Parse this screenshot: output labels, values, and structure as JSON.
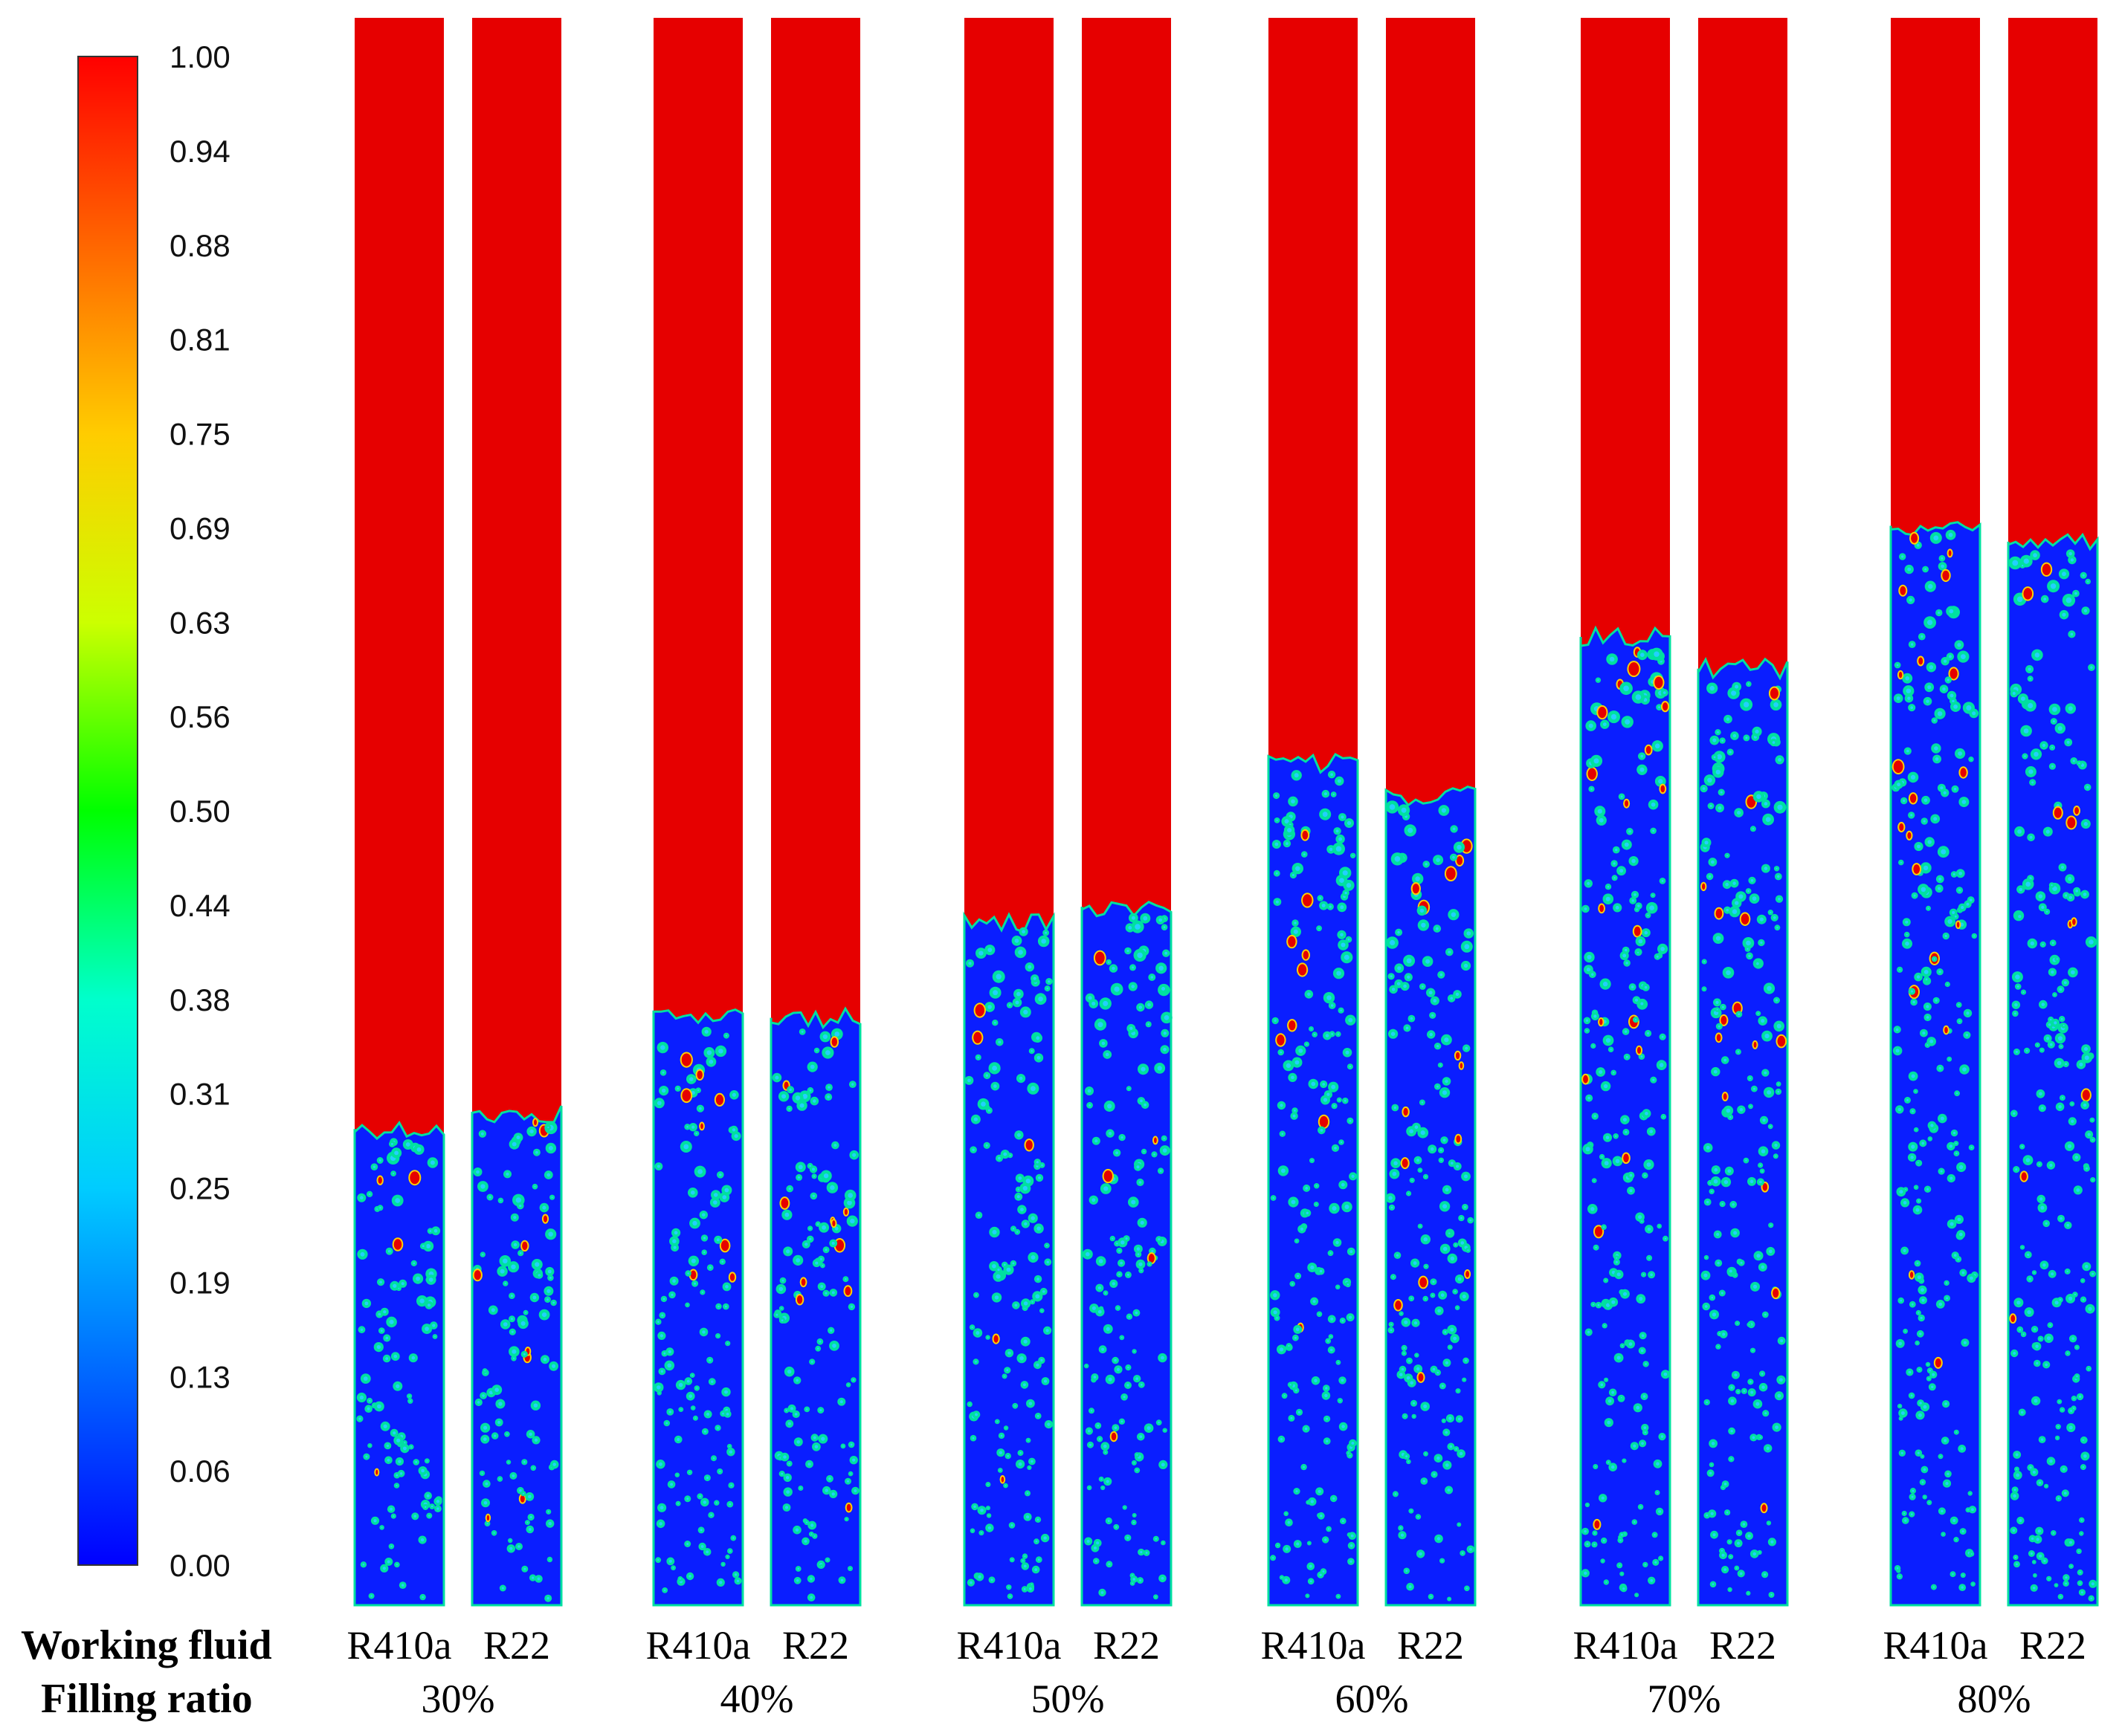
{
  "colorbar": {
    "ticks": [
      "1.00",
      "0.94",
      "0.88",
      "0.81",
      "0.75",
      "0.69",
      "0.63",
      "0.56",
      "0.50",
      "0.44",
      "0.38",
      "0.31",
      "0.25",
      "0.19",
      "0.13",
      "0.06",
      "0.00"
    ],
    "colors": [
      "#0000ff",
      "#0066ff",
      "#00ccff",
      "#00ffcc",
      "#00ff00",
      "#ccff00",
      "#ffcc00",
      "#ff6600",
      "#ff0000"
    ]
  },
  "row_labels": {
    "fluid": "Working fluid",
    "ratio": "Filling ratio"
  },
  "colors": {
    "vapor": "#e60000",
    "liquid": "#0a1eff",
    "bubble_edge": "#00e0a0"
  },
  "groups": [
    {
      "ratio": "30%",
      "tubes": [
        {
          "fluid": "R410a",
          "interface_fraction": 0.3
        },
        {
          "fluid": "R22",
          "interface_fraction": 0.31
        }
      ]
    },
    {
      "ratio": "40%",
      "tubes": [
        {
          "fluid": "R410a",
          "interface_fraction": 0.37
        },
        {
          "fluid": "R22",
          "interface_fraction": 0.37
        }
      ]
    },
    {
      "ratio": "50%",
      "tubes": [
        {
          "fluid": "R410a",
          "interface_fraction": 0.43
        },
        {
          "fluid": "R22",
          "interface_fraction": 0.44
        }
      ]
    },
    {
      "ratio": "60%",
      "tubes": [
        {
          "fluid": "R410a",
          "interface_fraction": 0.53
        },
        {
          "fluid": "R22",
          "interface_fraction": 0.51
        }
      ]
    },
    {
      "ratio": "70%",
      "tubes": [
        {
          "fluid": "R410a",
          "interface_fraction": 0.61
        },
        {
          "fluid": "R22",
          "interface_fraction": 0.59
        }
      ]
    },
    {
      "ratio": "80%",
      "tubes": [
        {
          "fluid": "R410a",
          "interface_fraction": 0.68
        },
        {
          "fluid": "R22",
          "interface_fraction": 0.67
        }
      ]
    }
  ]
}
